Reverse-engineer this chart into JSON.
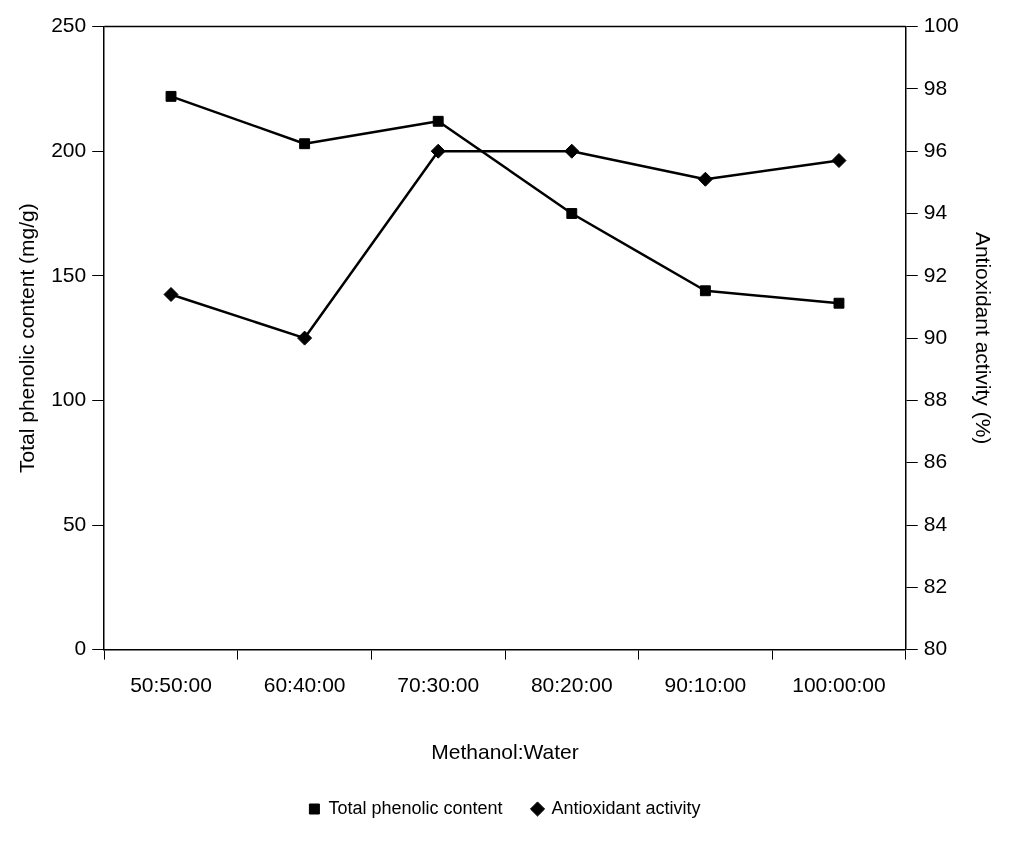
{
  "chart_data": {
    "type": "line",
    "xlabel": "Methanol:Water",
    "ylabel": "Total phenolic content (mg/g)",
    "y2label": "Antioxidant activity (%)",
    "categories": [
      "50:50:00",
      "60:40:00",
      "70:30:00",
      "80:20:00",
      "90:10:00",
      "100:00:00"
    ],
    "series": [
      {
        "name": "Total phenolic content",
        "color": "#000000",
        "marker": "square",
        "values": [
          222,
          203,
          212,
          175,
          144,
          139
        ]
      },
      {
        "name": "Antioxidant activity",
        "color": "#000000",
        "marker": "diamond",
        "axis": "y2",
        "values": [
          91.4,
          90,
          96,
          96,
          95.1,
          95.7
        ]
      }
    ],
    "ylim": [
      0,
      250
    ],
    "yticks": [
      0,
      50,
      100,
      150,
      200,
      250
    ],
    "y2lim": [
      80,
      100
    ],
    "y2ticks": [
      80,
      82,
      84,
      86,
      88,
      90,
      92,
      94,
      96,
      98,
      100
    ],
    "grid": false,
    "legend": "bottom",
    "line_style": "solid"
  }
}
